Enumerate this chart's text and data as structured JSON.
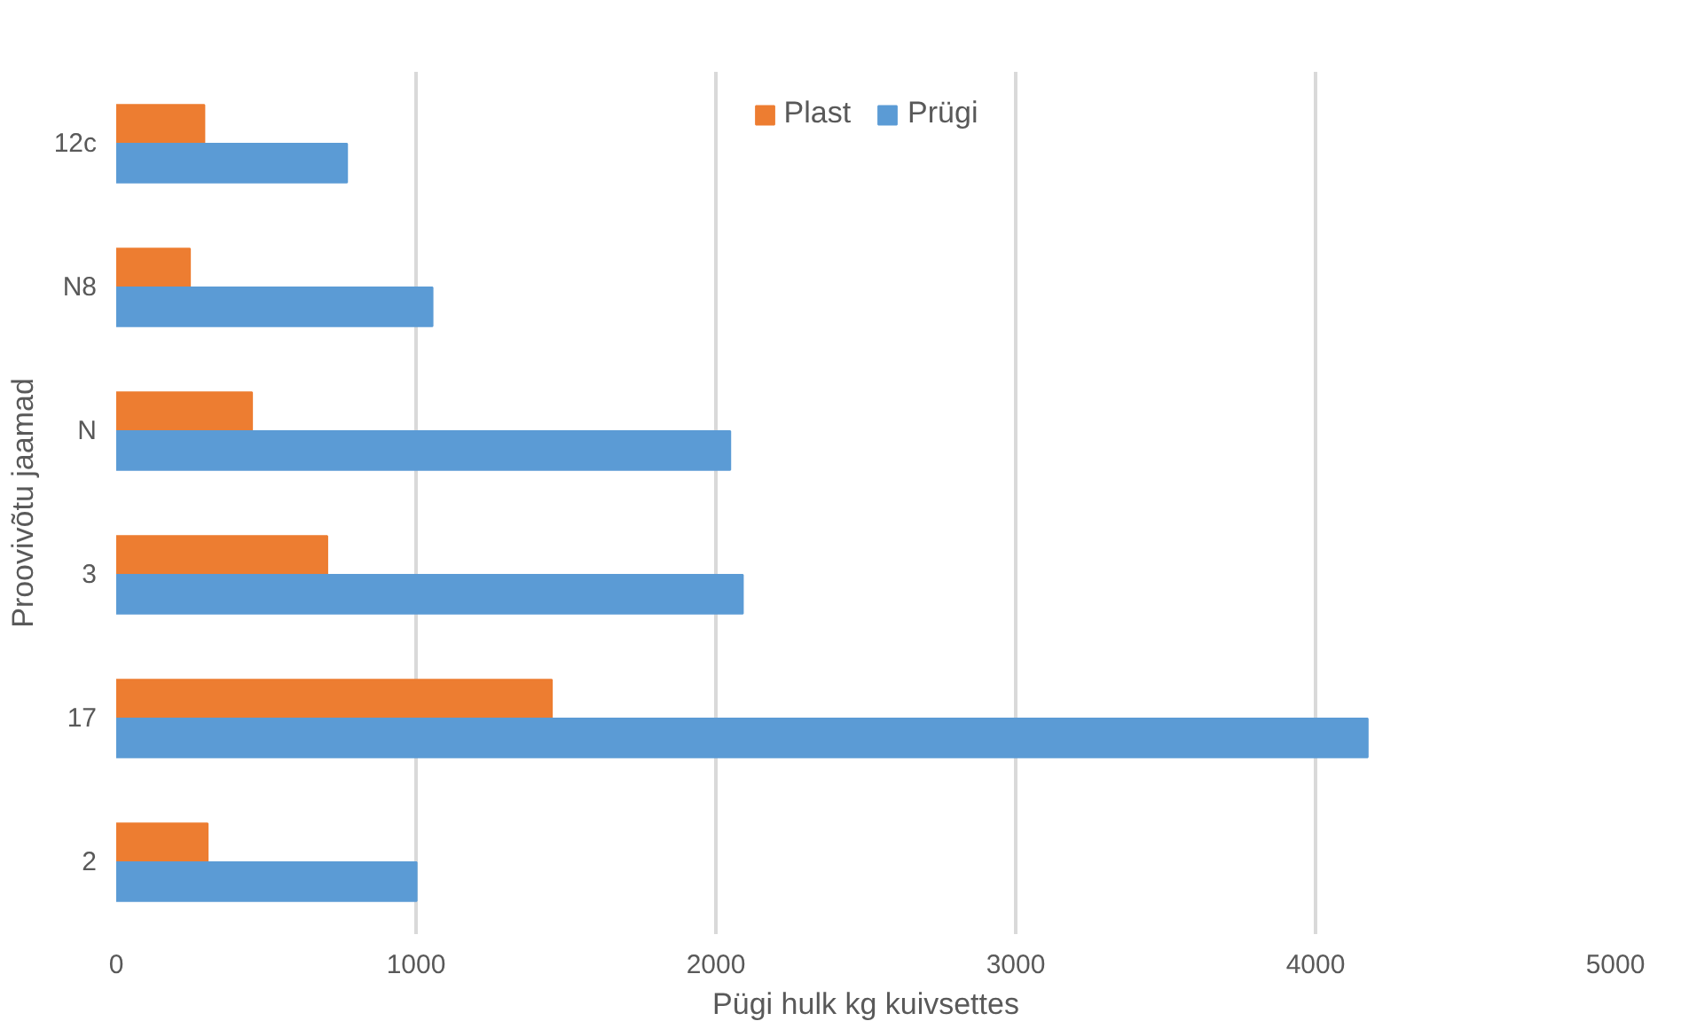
{
  "chart_data": {
    "type": "bar",
    "orientation": "horizontal",
    "xlabel": "Pügi hulk kg kuivsettes",
    "ylabel": "Proovivõtu jaamad",
    "categories": [
      "12c",
      "N8",
      "N",
      "3",
      "17",
      "2"
    ],
    "series": [
      {
        "name": "Plast",
        "color": "#ed7d31",
        "values": [
          294,
          246,
          453,
          704,
          1453,
          305
        ]
      },
      {
        "name": "Prügi",
        "color": "#5b9bd5",
        "values": [
          770,
          1055,
          2048,
          2090,
          4174,
          1002
        ]
      }
    ],
    "xlim": [
      0,
      5000
    ],
    "xticks": [
      0,
      1000,
      2000,
      3000,
      4000,
      5000
    ],
    "grid": "x",
    "legend": "top"
  }
}
